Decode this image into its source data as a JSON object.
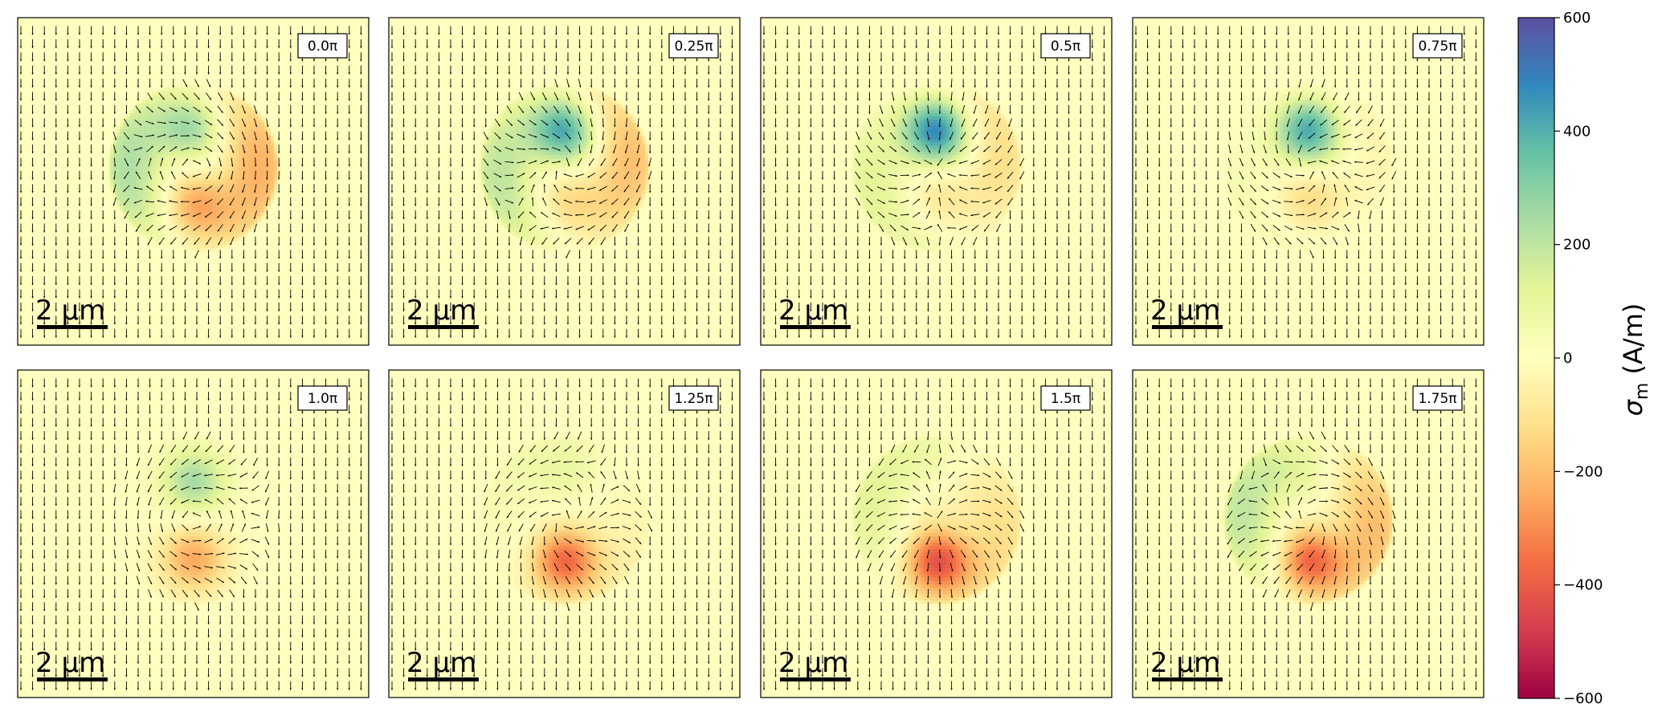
{
  "chart_data": {
    "type": "heatmap",
    "panels": [
      {
        "label": "0.0π",
        "phase_pi": 0.0
      },
      {
        "label": "0.25π",
        "phase_pi": 0.25
      },
      {
        "label": "0.5π",
        "phase_pi": 0.5
      },
      {
        "label": "0.75π",
        "phase_pi": 0.75
      },
      {
        "label": "1.0π",
        "phase_pi": 1.0
      },
      {
        "label": "1.25π",
        "phase_pi": 1.25
      },
      {
        "label": "1.5π",
        "phase_pi": 1.5
      },
      {
        "label": "1.75π",
        "phase_pi": 1.75
      }
    ],
    "scalebar_label": "2 μm",
    "scalebar_length_um": 2,
    "colorbar": {
      "label_symbol": "σ",
      "label_subscript": "m",
      "label_unit": "(A/m)",
      "min": -600,
      "max": 600,
      "ticks": [
        "600",
        "400",
        "200",
        "0",
        "−200",
        "−400",
        "−600"
      ],
      "colormap": "Spectral",
      "colors": [
        "#9e0142",
        "#d53e4f",
        "#f46d43",
        "#fdae61",
        "#fee08b",
        "#ffffbf",
        "#e6f598",
        "#abdda4",
        "#66c2a5",
        "#3288bd",
        "#5e4fa2"
      ]
    },
    "peak_amplitude": 600,
    "grid": false,
    "layout": "2 rows × 4 columns"
  }
}
